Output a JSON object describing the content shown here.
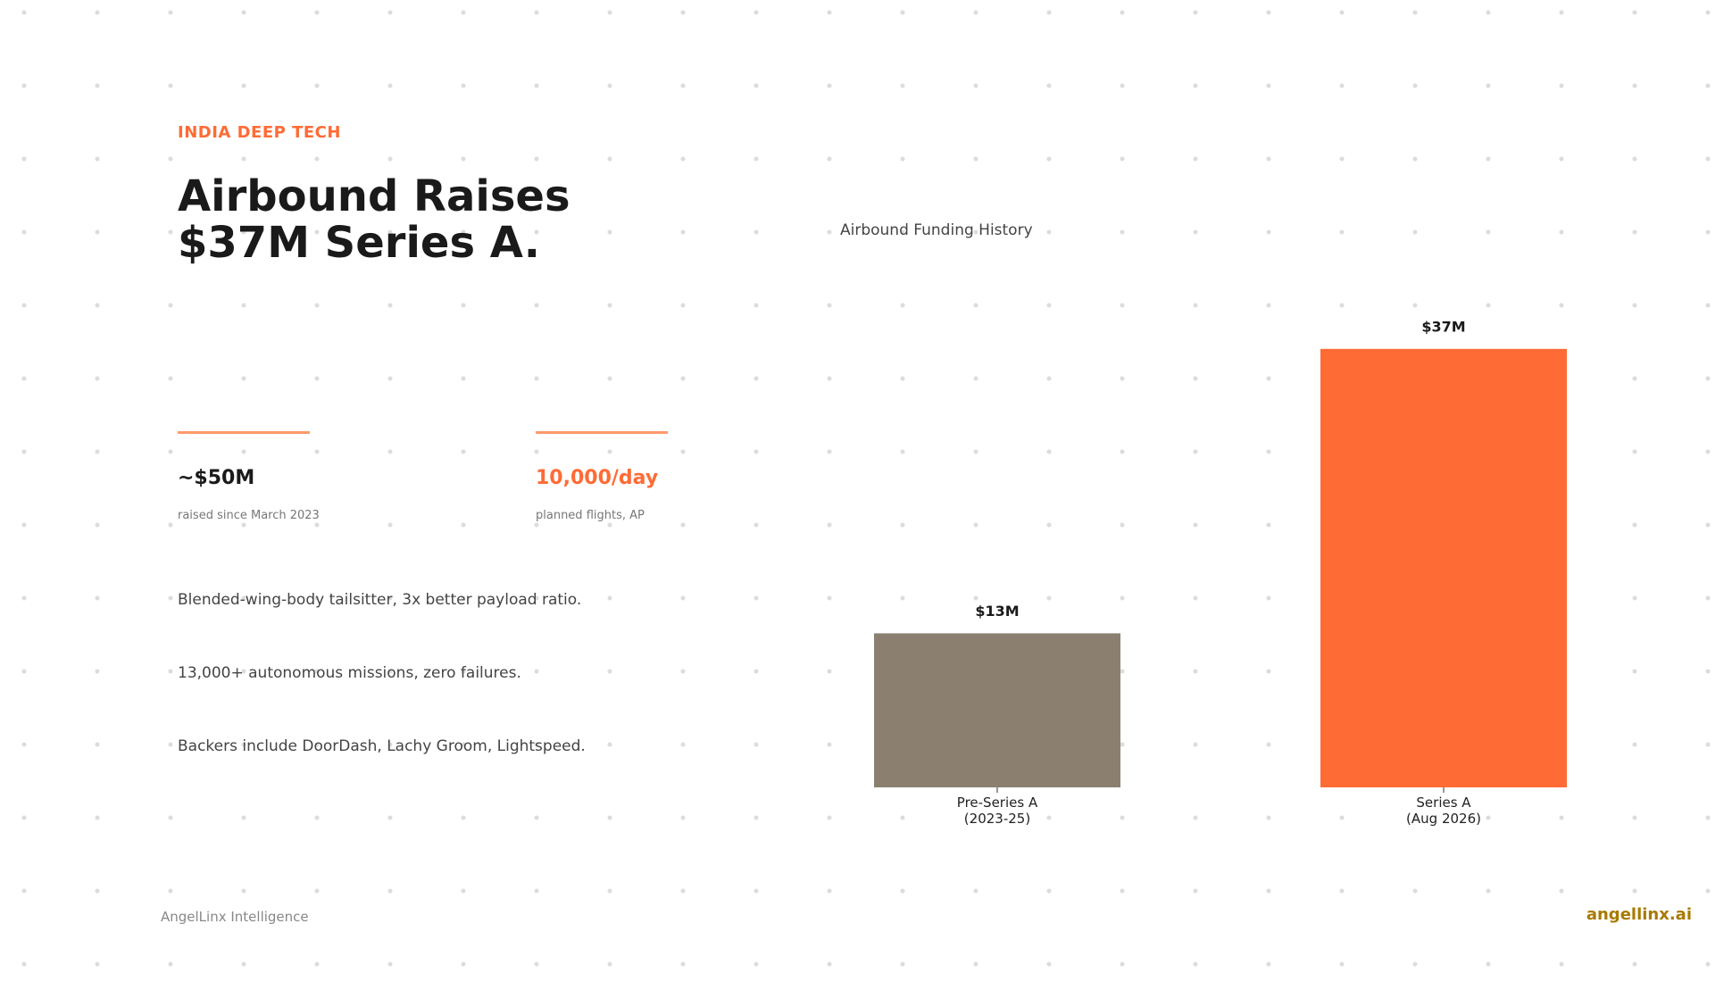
{
  "header": {
    "kicker": "INDIA DEEP TECH",
    "title_lines": [
      "Airbound Raises",
      "$37M Series A."
    ]
  },
  "stats": [
    {
      "value": "~$50M",
      "label": "raised since March 2023"
    },
    {
      "value": "10,000/day",
      "label": "planned flights, AP"
    }
  ],
  "bullets": [
    "Blended-wing-body tailsitter, 3x better payload ratio.",
    "13,000+ autonomous missions, zero failures.",
    "Backers include DoorDash, Lachy Groom, Lightspeed."
  ],
  "footer": {
    "source": "AngelLinx Intelligence",
    "brand": "angellinx.ai"
  },
  "chart_data": {
    "type": "bar",
    "title": "Airbound Funding History",
    "categories": [
      "Pre-Series A\n(2023-25)",
      "Series A\n(Aug 2026)"
    ],
    "values": [
      13,
      37
    ],
    "value_labels": [
      "$13M",
      "$37M"
    ],
    "colors": [
      "#8b8070",
      "#ff6b35"
    ],
    "ylim": [
      0,
      40
    ],
    "grid": false
  }
}
